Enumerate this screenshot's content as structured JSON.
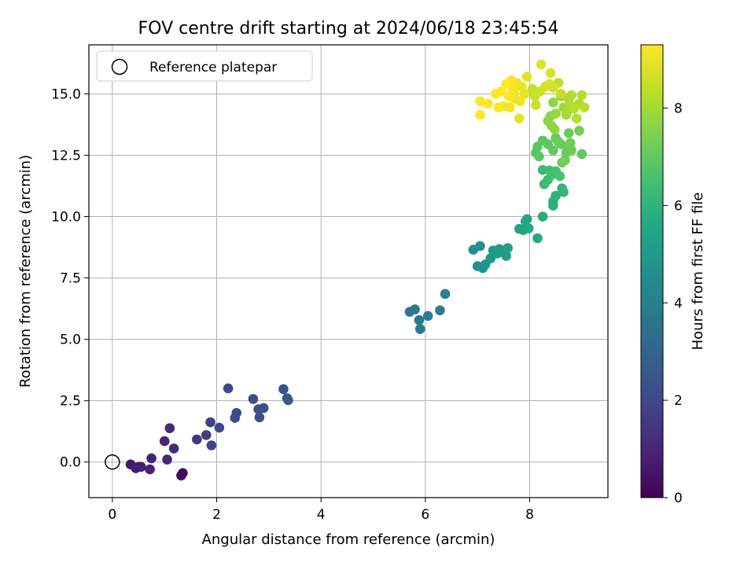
{
  "chart_data": {
    "type": "scatter",
    "title": "FOV centre drift starting at 2024/06/18 23:45:54",
    "xlabel": "Angular distance from reference (arcmin)",
    "ylabel": "Rotation from reference (arcmin)",
    "xlim": [
      -0.45,
      9.5
    ],
    "ylim": [
      -1.45,
      17.0
    ],
    "xticks": [
      0,
      2,
      4,
      6,
      8
    ],
    "xtick_labels": [
      "0",
      "2",
      "4",
      "6",
      "8"
    ],
    "yticks": [
      0,
      2.5,
      5,
      7.5,
      10,
      12.5,
      15
    ],
    "ytick_labels": [
      "0.0",
      "2.5",
      "5.0",
      "7.5",
      "10.0",
      "12.5",
      "15.0"
    ],
    "grid": true,
    "legend": {
      "placement": "top-left",
      "entries": [
        "Reference platepar"
      ]
    },
    "reference_point": {
      "x": 0,
      "y": 0,
      "label": "Reference platepar"
    },
    "colorbar": {
      "label": "Hours from first FF file",
      "range": [
        0,
        9.3
      ],
      "ticks": [
        0,
        2,
        4,
        6,
        8
      ],
      "tick_labels": [
        "0",
        "2",
        "4",
        "6",
        "8"
      ],
      "colormap": "viridis"
    },
    "points": [
      {
        "x": 0.35,
        "y": -0.1,
        "c": 0.6
      },
      {
        "x": 0.45,
        "y": -0.25,
        "c": 0.7
      },
      {
        "x": 0.5,
        "y": -0.2,
        "c": 0.75
      },
      {
        "x": 0.55,
        "y": -0.2,
        "c": 0.8
      },
      {
        "x": 0.72,
        "y": -0.3,
        "c": 0.85
      },
      {
        "x": 0.75,
        "y": 0.15,
        "c": 0.9
      },
      {
        "x": 1.0,
        "y": 0.85,
        "c": 1.0
      },
      {
        "x": 1.05,
        "y": 0.1,
        "c": 1.05
      },
      {
        "x": 1.1,
        "y": 1.38,
        "c": 1.1
      },
      {
        "x": 1.18,
        "y": 0.55,
        "c": 1.15
      },
      {
        "x": 1.32,
        "y": -0.55,
        "c": 0.2
      },
      {
        "x": 1.35,
        "y": -0.45,
        "c": 0.25
      },
      {
        "x": 1.62,
        "y": 0.92,
        "c": 1.6
      },
      {
        "x": 1.8,
        "y": 1.1,
        "c": 1.7
      },
      {
        "x": 1.88,
        "y": 1.62,
        "c": 1.8
      },
      {
        "x": 1.9,
        "y": 0.68,
        "c": 1.85
      },
      {
        "x": 2.05,
        "y": 1.4,
        "c": 1.95
      },
      {
        "x": 2.22,
        "y": 3.0,
        "c": 2.0
      },
      {
        "x": 2.35,
        "y": 1.8,
        "c": 2.05
      },
      {
        "x": 2.38,
        "y": 2.0,
        "c": 2.1
      },
      {
        "x": 2.7,
        "y": 2.57,
        "c": 2.2
      },
      {
        "x": 2.8,
        "y": 2.15,
        "c": 2.25
      },
      {
        "x": 2.82,
        "y": 1.82,
        "c": 2.3
      },
      {
        "x": 2.9,
        "y": 2.2,
        "c": 2.3
      },
      {
        "x": 3.28,
        "y": 2.97,
        "c": 2.4
      },
      {
        "x": 3.35,
        "y": 2.6,
        "c": 2.45
      },
      {
        "x": 3.37,
        "y": 2.52,
        "c": 2.5
      },
      {
        "x": 5.7,
        "y": 6.12,
        "c": 3.7
      },
      {
        "x": 5.8,
        "y": 6.22,
        "c": 3.75
      },
      {
        "x": 5.88,
        "y": 5.78,
        "c": 3.8
      },
      {
        "x": 5.9,
        "y": 5.42,
        "c": 3.85
      },
      {
        "x": 6.05,
        "y": 5.95,
        "c": 3.9
      },
      {
        "x": 6.28,
        "y": 6.18,
        "c": 3.95
      },
      {
        "x": 6.38,
        "y": 6.85,
        "c": 4.0
      },
      {
        "x": 6.92,
        "y": 8.65,
        "c": 4.6
      },
      {
        "x": 7.0,
        "y": 7.98,
        "c": 4.65
      },
      {
        "x": 7.05,
        "y": 8.8,
        "c": 4.7
      },
      {
        "x": 7.1,
        "y": 7.9,
        "c": 4.75
      },
      {
        "x": 7.15,
        "y": 8.05,
        "c": 4.8
      },
      {
        "x": 7.25,
        "y": 8.3,
        "c": 4.85
      },
      {
        "x": 7.3,
        "y": 8.62,
        "c": 4.9
      },
      {
        "x": 7.38,
        "y": 8.5,
        "c": 4.95
      },
      {
        "x": 7.42,
        "y": 8.68,
        "c": 5.0
      },
      {
        "x": 7.5,
        "y": 8.55,
        "c": 5.05
      },
      {
        "x": 7.55,
        "y": 8.4,
        "c": 5.1
      },
      {
        "x": 7.58,
        "y": 8.72,
        "c": 5.15
      },
      {
        "x": 7.8,
        "y": 9.5,
        "c": 5.4
      },
      {
        "x": 7.88,
        "y": 9.45,
        "c": 5.45
      },
      {
        "x": 7.92,
        "y": 9.8,
        "c": 5.5
      },
      {
        "x": 7.95,
        "y": 9.9,
        "c": 5.55
      },
      {
        "x": 7.98,
        "y": 9.52,
        "c": 5.6
      },
      {
        "x": 8.15,
        "y": 9.12,
        "c": 5.65
      },
      {
        "x": 8.25,
        "y": 10.0,
        "c": 5.8
      },
      {
        "x": 8.45,
        "y": 10.45,
        "c": 5.9
      },
      {
        "x": 8.45,
        "y": 10.62,
        "c": 5.95
      },
      {
        "x": 8.5,
        "y": 10.85,
        "c": 6.0
      },
      {
        "x": 8.62,
        "y": 11.15,
        "c": 6.05
      },
      {
        "x": 8.65,
        "y": 11.0,
        "c": 6.1
      },
      {
        "x": 8.25,
        "y": 11.9,
        "c": 6.3
      },
      {
        "x": 8.28,
        "y": 11.32,
        "c": 6.35
      },
      {
        "x": 8.35,
        "y": 11.5,
        "c": 6.4
      },
      {
        "x": 8.38,
        "y": 11.88,
        "c": 6.45
      },
      {
        "x": 8.42,
        "y": 11.7,
        "c": 6.5
      },
      {
        "x": 8.5,
        "y": 11.85,
        "c": 6.55
      },
      {
        "x": 8.58,
        "y": 11.65,
        "c": 6.6
      },
      {
        "x": 8.12,
        "y": 12.6,
        "c": 6.8
      },
      {
        "x": 8.15,
        "y": 12.85,
        "c": 6.85
      },
      {
        "x": 8.18,
        "y": 12.45,
        "c": 6.9
      },
      {
        "x": 8.25,
        "y": 13.1,
        "c": 6.95
      },
      {
        "x": 8.35,
        "y": 12.95,
        "c": 7.0
      },
      {
        "x": 8.45,
        "y": 12.7,
        "c": 7.05
      },
      {
        "x": 8.5,
        "y": 13.2,
        "c": 7.1
      },
      {
        "x": 8.55,
        "y": 13.05,
        "c": 7.15
      },
      {
        "x": 8.6,
        "y": 12.95,
        "c": 7.2
      },
      {
        "x": 8.62,
        "y": 12.2,
        "c": 7.25
      },
      {
        "x": 8.68,
        "y": 12.3,
        "c": 7.3
      },
      {
        "x": 8.7,
        "y": 12.6,
        "c": 7.1
      },
      {
        "x": 8.72,
        "y": 12.85,
        "c": 7.15
      },
      {
        "x": 8.75,
        "y": 13.4,
        "c": 7.2
      },
      {
        "x": 8.78,
        "y": 13.0,
        "c": 7.25
      },
      {
        "x": 8.8,
        "y": 12.7,
        "c": 7.2
      },
      {
        "x": 8.95,
        "y": 13.5,
        "c": 7.35
      },
      {
        "x": 9.0,
        "y": 12.55,
        "c": 7.0
      },
      {
        "x": 8.35,
        "y": 13.9,
        "c": 7.6
      },
      {
        "x": 8.4,
        "y": 14.1,
        "c": 7.65
      },
      {
        "x": 8.42,
        "y": 13.7,
        "c": 7.7
      },
      {
        "x": 8.45,
        "y": 14.65,
        "c": 7.75
      },
      {
        "x": 8.48,
        "y": 13.55,
        "c": 7.8
      },
      {
        "x": 8.5,
        "y": 14.2,
        "c": 7.85
      },
      {
        "x": 8.6,
        "y": 14.9,
        "c": 7.9
      },
      {
        "x": 8.65,
        "y": 14.45,
        "c": 7.95
      },
      {
        "x": 8.7,
        "y": 14.15,
        "c": 8.0
      },
      {
        "x": 8.72,
        "y": 14.3,
        "c": 8.05
      },
      {
        "x": 8.75,
        "y": 14.8,
        "c": 8.1
      },
      {
        "x": 8.78,
        "y": 14.55,
        "c": 8.15
      },
      {
        "x": 8.8,
        "y": 14.95,
        "c": 8.2
      },
      {
        "x": 8.85,
        "y": 14.4,
        "c": 8.25
      },
      {
        "x": 8.9,
        "y": 14.0,
        "c": 8.3
      },
      {
        "x": 8.95,
        "y": 14.6,
        "c": 8.2
      },
      {
        "x": 9.0,
        "y": 14.95,
        "c": 8.25
      },
      {
        "x": 9.05,
        "y": 14.45,
        "c": 8.3
      },
      {
        "x": 8.55,
        "y": 15.45,
        "c": 8.4
      },
      {
        "x": 8.6,
        "y": 15.0,
        "c": 8.45
      },
      {
        "x": 8.05,
        "y": 15.2,
        "c": 8.5
      },
      {
        "x": 8.1,
        "y": 14.9,
        "c": 8.55
      },
      {
        "x": 8.12,
        "y": 14.55,
        "c": 8.6
      },
      {
        "x": 8.2,
        "y": 15.1,
        "c": 8.65
      },
      {
        "x": 8.3,
        "y": 15.3,
        "c": 8.7
      },
      {
        "x": 8.38,
        "y": 15.4,
        "c": 8.75
      },
      {
        "x": 8.4,
        "y": 15.85,
        "c": 8.8
      },
      {
        "x": 8.45,
        "y": 15.25,
        "c": 8.7
      },
      {
        "x": 8.22,
        "y": 16.2,
        "c": 8.9
      },
      {
        "x": 7.95,
        "y": 15.7,
        "c": 8.9
      },
      {
        "x": 7.9,
        "y": 15.0,
        "c": 8.95
      },
      {
        "x": 7.85,
        "y": 15.3,
        "c": 9.0
      },
      {
        "x": 7.8,
        "y": 14.0,
        "c": 8.95
      },
      {
        "x": 7.75,
        "y": 15.45,
        "c": 9.05
      },
      {
        "x": 7.72,
        "y": 14.8,
        "c": 9.1
      },
      {
        "x": 7.68,
        "y": 15.2,
        "c": 9.15
      },
      {
        "x": 7.65,
        "y": 15.55,
        "c": 9.2
      },
      {
        "x": 7.62,
        "y": 14.45,
        "c": 9.2
      },
      {
        "x": 7.6,
        "y": 14.9,
        "c": 9.25
      },
      {
        "x": 7.55,
        "y": 15.4,
        "c": 9.25
      },
      {
        "x": 7.5,
        "y": 14.5,
        "c": 9.2
      },
      {
        "x": 7.45,
        "y": 15.1,
        "c": 9.3
      },
      {
        "x": 7.4,
        "y": 14.45,
        "c": 9.25
      },
      {
        "x": 7.35,
        "y": 15.0,
        "c": 9.3
      },
      {
        "x": 7.2,
        "y": 14.6,
        "c": 9.25
      },
      {
        "x": 7.05,
        "y": 14.7,
        "c": 9.3
      },
      {
        "x": 7.05,
        "y": 14.15,
        "c": 9.3
      },
      {
        "x": 7.82,
        "y": 14.7,
        "c": 9.1
      },
      {
        "x": 7.7,
        "y": 15.05,
        "c": 9.15
      }
    ]
  }
}
